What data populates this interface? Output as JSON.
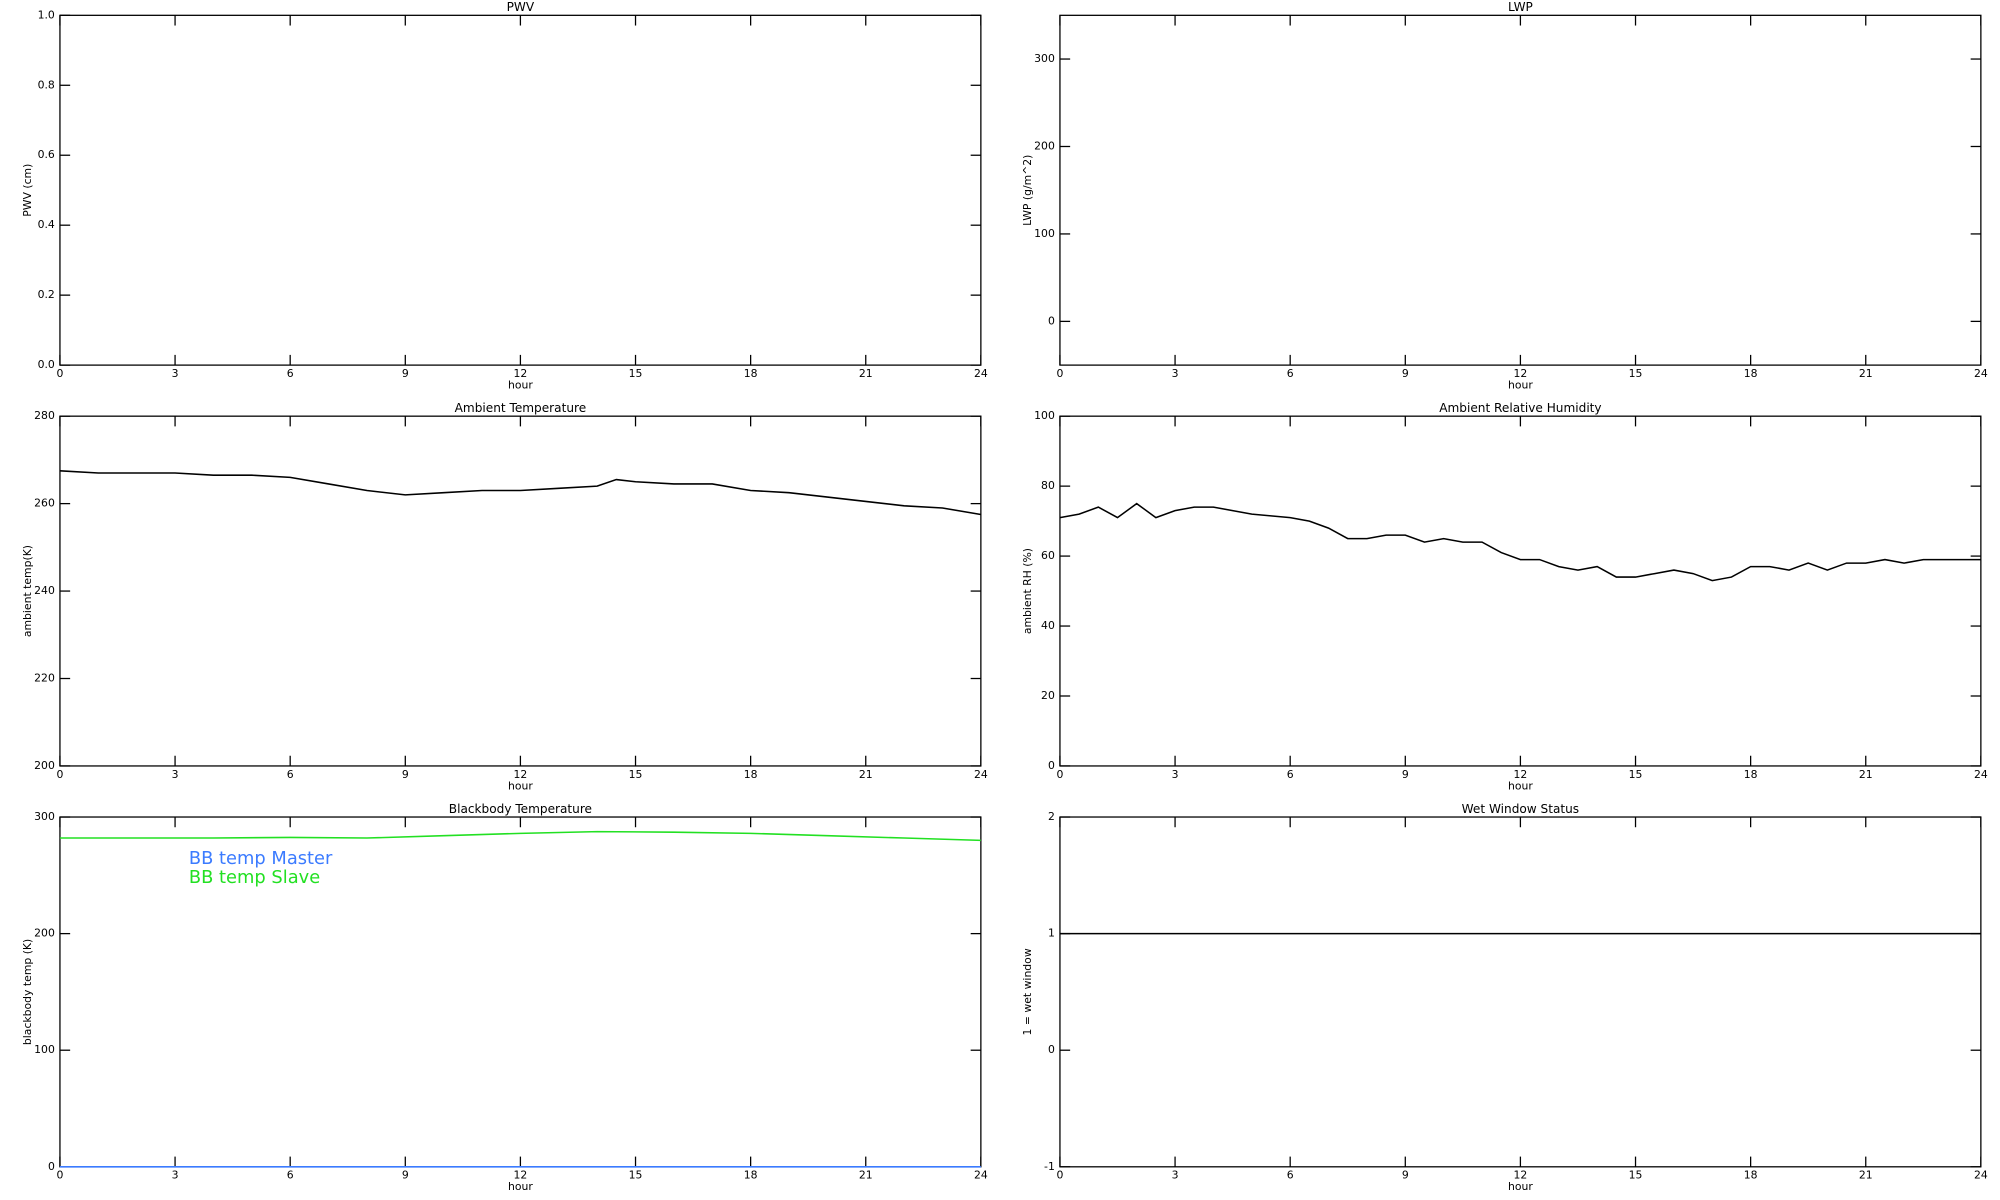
{
  "chart_data": [
    {
      "type": "line",
      "title": "PWV",
      "xlabel": "hour",
      "ylabel": "PWV (cm)",
      "xlim": [
        0,
        24
      ],
      "xticks": [
        0,
        3,
        6,
        9,
        12,
        15,
        18,
        21,
        24
      ],
      "ylim": [
        0,
        1
      ],
      "yticks": [
        {
          "value": 0,
          "label": "0.0"
        },
        0.2,
        0.4,
        0.6,
        0.8,
        {
          "value": 1,
          "label": "1.0"
        }
      ]
    },
    {
      "type": "line",
      "title": "LWP",
      "xlabel": "hour",
      "ylabel": "LWP (g/m^2)",
      "xlim": [
        0,
        24
      ],
      "xticks": [
        0,
        3,
        6,
        9,
        12,
        15,
        18,
        21,
        24
      ],
      "ylim": [
        -50,
        350
      ],
      "yticks": [
        0,
        100,
        200,
        300
      ]
    },
    {
      "type": "line",
      "title": "Ambient Temperature",
      "xlabel": "hour",
      "ylabel": "ambient temp(K)",
      "xlim": [
        0,
        24
      ],
      "xticks": [
        0,
        3,
        6,
        9,
        12,
        15,
        18,
        21,
        24
      ],
      "ylim": [
        200,
        280
      ],
      "yticks": [
        200,
        220,
        240,
        260,
        280
      ],
      "color": "#000000",
      "x": [
        0,
        1,
        2,
        3,
        4,
        5,
        6,
        7,
        8,
        9,
        10,
        11,
        12,
        13,
        14,
        14.5,
        15,
        16,
        17,
        18,
        19,
        20,
        21,
        22,
        23,
        24
      ],
      "values": [
        267.5,
        267,
        267,
        267,
        266.5,
        266.5,
        266,
        264.5,
        263,
        262,
        262.5,
        263,
        263,
        263.5,
        264,
        265.5,
        265,
        264.5,
        264.5,
        263,
        262.5,
        261.5,
        260.5,
        259.5,
        259,
        257.5
      ]
    },
    {
      "type": "line",
      "title": "Ambient Relative Humidity",
      "xlabel": "hour",
      "ylabel": "ambient RH (%)",
      "xlim": [
        0,
        24
      ],
      "xticks": [
        0,
        3,
        6,
        9,
        12,
        15,
        18,
        21,
        24
      ],
      "ylim": [
        0,
        100
      ],
      "yticks": [
        0,
        20,
        40,
        60,
        80,
        100
      ],
      "color": "#000000",
      "x": [
        0,
        0.5,
        1,
        1.5,
        2,
        2.5,
        3,
        3.5,
        4,
        4.5,
        5,
        5.5,
        6,
        6.5,
        7,
        7.5,
        8,
        8.5,
        9,
        9.5,
        10,
        10.5,
        11,
        11.5,
        12,
        12.5,
        13,
        13.5,
        14,
        14.5,
        15,
        15.5,
        16,
        16.5,
        17,
        17.5,
        18,
        18.5,
        19,
        19.5,
        20,
        20.5,
        21,
        21.5,
        22,
        22.5,
        23,
        23.5,
        24
      ],
      "values": [
        71,
        72,
        74,
        71,
        75,
        71,
        73,
        74,
        74,
        73,
        72,
        71.5,
        71,
        70,
        68,
        65,
        65,
        66,
        66,
        64,
        65,
        64,
        64,
        61,
        59,
        59,
        57,
        56,
        57,
        54,
        54,
        55,
        56,
        55,
        53,
        54,
        57,
        57,
        56,
        58,
        56,
        58,
        58,
        59,
        58,
        59,
        59,
        59,
        59
      ]
    },
    {
      "type": "line",
      "title": "Blackbody Temperature",
      "xlabel": "hour",
      "ylabel": "blackbody temp (K)",
      "xlim": [
        0,
        24
      ],
      "xticks": [
        0,
        3,
        6,
        9,
        12,
        15,
        18,
        21,
        24
      ],
      "ylim": [
        0,
        300
      ],
      "yticks": [
        0,
        100,
        200,
        300
      ],
      "legend": "upper left",
      "x": [
        0,
        2,
        4,
        6,
        8,
        10,
        12,
        14,
        16,
        18,
        20,
        22,
        24
      ],
      "series": [
        {
          "name": "BB temp Master",
          "color": "#3b7bff",
          "values": [
            0,
            0,
            0,
            0,
            0,
            0,
            0,
            0,
            0,
            0,
            0,
            0,
            0
          ]
        },
        {
          "name": "BB temp Slave",
          "color": "#22e022",
          "values": [
            282,
            282,
            282,
            282.5,
            282,
            284,
            286,
            287.5,
            287,
            286,
            284,
            282,
            280
          ]
        }
      ]
    },
    {
      "type": "line",
      "title": "Wet Window Status",
      "xlabel": "hour",
      "ylabel": "1 = wet window",
      "xlim": [
        0,
        24
      ],
      "xticks": [
        0,
        3,
        6,
        9,
        12,
        15,
        18,
        21,
        24
      ],
      "ylim": [
        -1,
        2
      ],
      "yticks": [
        -1,
        0,
        1,
        2
      ],
      "color": "#000000",
      "x": [
        0,
        24
      ],
      "values": [
        1,
        1
      ]
    }
  ]
}
